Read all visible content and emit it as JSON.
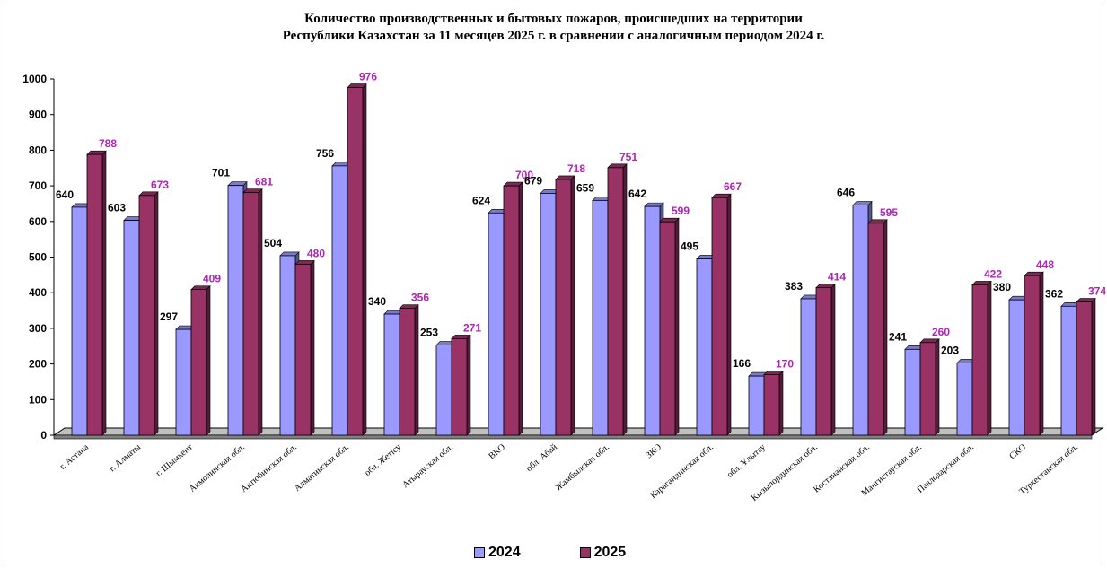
{
  "chart_data": {
    "type": "bar",
    "title": "Количество производственных и бытовых пожаров, происшедших на территории Республики Казахстан за 11 месяцев 2025 г. в сравнении с аналогичным периодом 2024 г.",
    "title_lines": [
      "Количество производственных и бытовых пожаров, происшедших на территории",
      "Республики Казахстан за 11 месяцев 2025 г. в сравнении с аналогичным периодом 2024 г."
    ],
    "categories": [
      "г. Астана",
      "г. Алматы",
      "г. Шымкент",
      "Акмолинская обл.",
      "Актюбинская обл.",
      "Алматинская обл.",
      "обл. Жетісу",
      "Атырауская обл.",
      "ВКО",
      "обл. Абай",
      "Жамбылская обл.",
      "ЗКО",
      "Карагандинская обл.",
      "обл. Ұлытау",
      "Кызылординская обл.",
      "Костанайская обл.",
      "Мангистауская обл.",
      "Павлодарская обл.",
      "СКО",
      "Туркестанская обл."
    ],
    "series": [
      {
        "name": "2024",
        "color": "#9999ff",
        "values": [
          640,
          603,
          297,
          701,
          504,
          756,
          340,
          253,
          624,
          679,
          659,
          642,
          495,
          166,
          383,
          646,
          241,
          203,
          380,
          362
        ]
      },
      {
        "name": "2025",
        "color": "#993366",
        "values": [
          788,
          673,
          409,
          681,
          480,
          976,
          356,
          271,
          700,
          718,
          751,
          599,
          667,
          170,
          414,
          595,
          260,
          422,
          448,
          374
        ]
      }
    ],
    "ylim": [
      0,
      1000
    ],
    "yticks": [
      0,
      100,
      200,
      300,
      400,
      500,
      600,
      700,
      800,
      900,
      1000
    ],
    "grid": false,
    "legend_position": "bottom",
    "label_colors": {
      "2024": "#000000",
      "2025": "#b022b8"
    }
  }
}
